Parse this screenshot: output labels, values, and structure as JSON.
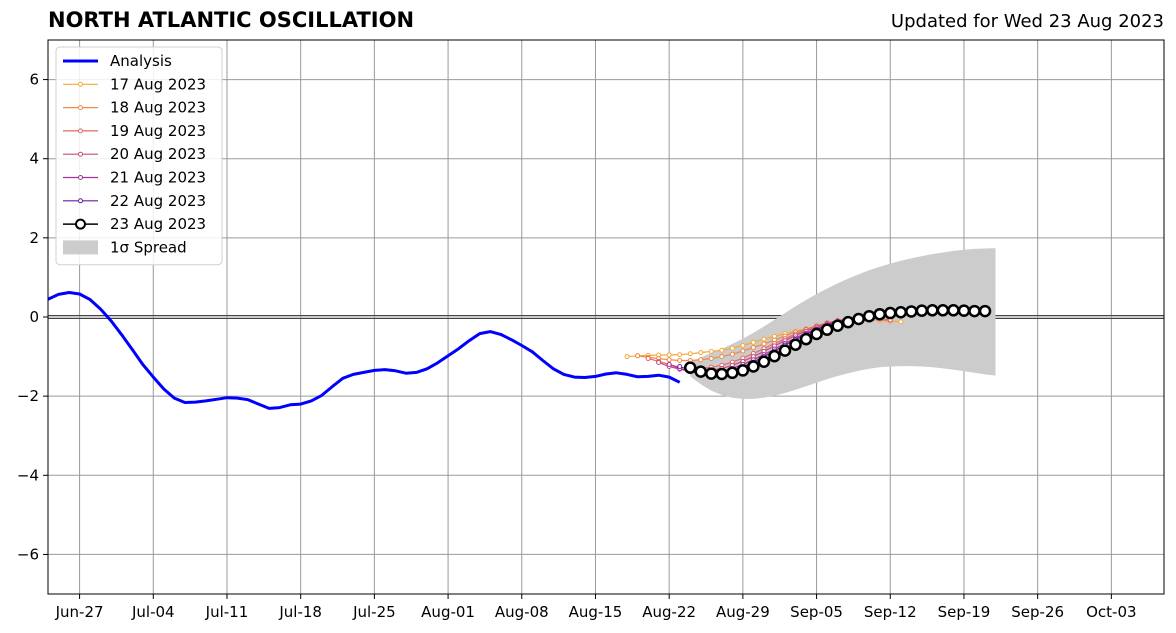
{
  "title": "NORTH ATLANTIC OSCILLATION",
  "updated": "Updated for Wed 23 Aug 2023",
  "chart_data": {
    "type": "line",
    "ylim": [
      -7,
      7
    ],
    "yticks": [
      -6,
      -4,
      -2,
      0,
      2,
      4,
      6
    ],
    "ytick_labels": [
      "−6",
      "−4",
      "−2",
      "0",
      "2",
      "4",
      "6"
    ],
    "xlim": [
      "2023-06-24",
      "2023-10-08"
    ],
    "xticks": [
      "2023-06-27",
      "2023-07-04",
      "2023-07-11",
      "2023-07-18",
      "2023-07-25",
      "2023-08-01",
      "2023-08-08",
      "2023-08-15",
      "2023-08-22",
      "2023-08-29",
      "2023-09-05",
      "2023-09-12",
      "2023-09-19",
      "2023-09-26",
      "2023-10-03"
    ],
    "xtick_labels": [
      "Jun-27",
      "Jul-04",
      "Jul-11",
      "Jul-18",
      "Jul-25",
      "Aug-01",
      "Aug-08",
      "Aug-15",
      "Aug-22",
      "Aug-29",
      "Sep-05",
      "Sep-12",
      "Sep-19",
      "Sep-26",
      "Oct-03"
    ],
    "grid": true,
    "legend_position": "top-left",
    "analysis": {
      "name": "Analysis",
      "color": "#0000ff",
      "x": [
        "2023-06-24",
        "2023-06-25",
        "2023-06-26",
        "2023-06-27",
        "2023-06-28",
        "2023-06-29",
        "2023-06-30",
        "2023-07-01",
        "2023-07-02",
        "2023-07-03",
        "2023-07-04",
        "2023-07-05",
        "2023-07-06",
        "2023-07-07",
        "2023-07-08",
        "2023-07-09",
        "2023-07-10",
        "2023-07-11",
        "2023-07-12",
        "2023-07-13",
        "2023-07-14",
        "2023-07-15",
        "2023-07-16",
        "2023-07-17",
        "2023-07-18",
        "2023-07-19",
        "2023-07-20",
        "2023-07-21",
        "2023-07-22",
        "2023-07-23",
        "2023-07-24",
        "2023-07-25",
        "2023-07-26",
        "2023-07-27",
        "2023-07-28",
        "2023-07-29",
        "2023-07-30",
        "2023-07-31",
        "2023-08-01",
        "2023-08-02",
        "2023-08-03",
        "2023-08-04",
        "2023-08-05",
        "2023-08-06",
        "2023-08-07",
        "2023-08-08",
        "2023-08-09",
        "2023-08-10",
        "2023-08-11",
        "2023-08-12",
        "2023-08-13",
        "2023-08-14",
        "2023-08-15",
        "2023-08-16",
        "2023-08-17",
        "2023-08-18",
        "2023-08-19",
        "2023-08-20",
        "2023-08-21",
        "2023-08-22",
        "2023-08-23"
      ],
      "y": [
        0.45,
        0.57,
        0.62,
        0.58,
        0.44,
        0.2,
        -0.1,
        -0.45,
        -0.82,
        -1.2,
        -1.52,
        -1.82,
        -2.05,
        -2.16,
        -2.15,
        -2.12,
        -2.08,
        -2.04,
        -2.05,
        -2.09,
        -2.2,
        -2.31,
        -2.29,
        -2.22,
        -2.2,
        -2.12,
        -1.98,
        -1.76,
        -1.55,
        -1.45,
        -1.4,
        -1.35,
        -1.33,
        -1.36,
        -1.42,
        -1.4,
        -1.31,
        -1.16,
        -0.98,
        -0.8,
        -0.6,
        -0.42,
        -0.37,
        -0.44,
        -0.57,
        -0.72,
        -0.88,
        -1.1,
        -1.31,
        -1.45,
        -1.52,
        -1.53,
        -1.5,
        -1.44,
        -1.41,
        -1.45,
        -1.51,
        -1.5,
        -1.47,
        -1.52,
        -1.65
      ]
    },
    "forecasts": [
      {
        "name": "17 Aug 2023",
        "color": "#f7a83a",
        "start": "2023-08-18",
        "y": [
          -1.0,
          -0.98,
          -0.97,
          -0.96,
          -0.96,
          -0.95,
          -0.93,
          -0.9,
          -0.87,
          -0.84,
          -0.79,
          -0.72,
          -0.64,
          -0.56,
          -0.49,
          -0.42,
          -0.36,
          -0.3,
          -0.24,
          -0.18,
          -0.13,
          -0.1,
          -0.08,
          -0.07,
          -0.08,
          -0.1,
          -0.12
        ]
      },
      {
        "name": "18 Aug 2023",
        "color": "#ee8a47",
        "start": "2023-08-19",
        "y": [
          -0.98,
          -1.02,
          -1.05,
          -1.08,
          -1.1,
          -1.1,
          -1.08,
          -1.05,
          -1.0,
          -0.94,
          -0.86,
          -0.77,
          -0.68,
          -0.58,
          -0.48,
          -0.38,
          -0.3,
          -0.22,
          -0.15,
          -0.1,
          -0.07,
          -0.06,
          -0.06,
          -0.08,
          -0.1
        ]
      },
      {
        "name": "19 Aug 2023",
        "color": "#e06a65",
        "start": "2023-08-20",
        "y": [
          -1.05,
          -1.12,
          -1.2,
          -1.27,
          -1.3,
          -1.3,
          -1.27,
          -1.22,
          -1.14,
          -1.04,
          -0.92,
          -0.8,
          -0.67,
          -0.55,
          -0.43,
          -0.32,
          -0.23,
          -0.15,
          -0.09,
          -0.04,
          -0.02,
          -0.02,
          -0.04,
          -0.07
        ]
      },
      {
        "name": "20 Aug 2023",
        "color": "#c74b7f",
        "start": "2023-08-21",
        "y": [
          -1.15,
          -1.25,
          -1.32,
          -1.37,
          -1.38,
          -1.35,
          -1.3,
          -1.22,
          -1.12,
          -1.0,
          -0.87,
          -0.73,
          -0.6,
          -0.47,
          -0.36,
          -0.26,
          -0.17,
          -0.1,
          -0.04,
          0.0,
          0.02,
          0.03,
          0.03,
          0.02
        ]
      },
      {
        "name": "21 Aug 2023",
        "color": "#a3329a",
        "start": "2023-08-22",
        "y": [
          -1.2,
          -1.3,
          -1.38,
          -1.42,
          -1.42,
          -1.38,
          -1.3,
          -1.2,
          -1.08,
          -0.95,
          -0.81,
          -0.67,
          -0.53,
          -0.41,
          -0.3,
          -0.2,
          -0.12,
          -0.05,
          0.01,
          0.05,
          0.08,
          0.09,
          0.1,
          0.1
        ]
      },
      {
        "name": "22 Aug 2023",
        "color": "#6a1fa0",
        "start": "2023-08-23",
        "y": [
          -1.25,
          -1.35,
          -1.42,
          -1.45,
          -1.42,
          -1.36,
          -1.26,
          -1.14,
          -1.0,
          -0.86,
          -0.71,
          -0.57,
          -0.44,
          -0.32,
          -0.22,
          -0.13,
          -0.05,
          0.01,
          0.06,
          0.1,
          0.12,
          0.13,
          0.13,
          0.13
        ]
      },
      {
        "name": "23 Aug 2023",
        "color": "#000000",
        "start": "2023-08-24",
        "hollow": true,
        "y": [
          -1.28,
          -1.38,
          -1.43,
          -1.44,
          -1.41,
          -1.35,
          -1.25,
          -1.13,
          -0.99,
          -0.85,
          -0.7,
          -0.56,
          -0.43,
          -0.32,
          -0.22,
          -0.13,
          -0.05,
          0.02,
          0.07,
          0.1,
          0.12,
          0.14,
          0.16,
          0.17,
          0.17,
          0.17,
          0.16,
          0.15,
          0.15
        ]
      }
    ],
    "spread": {
      "name": "1σ Spread",
      "color": "#cccccc",
      "start": "2023-08-24",
      "upper": [
        -1.15,
        -1.02,
        -0.9,
        -0.8,
        -0.68,
        -0.55,
        -0.4,
        -0.24,
        -0.07,
        0.1,
        0.27,
        0.43,
        0.58,
        0.72,
        0.85,
        0.97,
        1.08,
        1.18,
        1.27,
        1.35,
        1.42,
        1.48,
        1.54,
        1.59,
        1.63,
        1.67,
        1.7,
        1.72,
        1.73,
        1.74
      ],
      "lower": [
        -1.5,
        -1.7,
        -1.86,
        -1.97,
        -2.04,
        -2.07,
        -2.07,
        -2.04,
        -1.99,
        -1.92,
        -1.84,
        -1.75,
        -1.66,
        -1.57,
        -1.49,
        -1.42,
        -1.36,
        -1.31,
        -1.27,
        -1.25,
        -1.24,
        -1.24,
        -1.25,
        -1.27,
        -1.3,
        -1.33,
        -1.37,
        -1.41,
        -1.45,
        -1.48
      ]
    }
  }
}
